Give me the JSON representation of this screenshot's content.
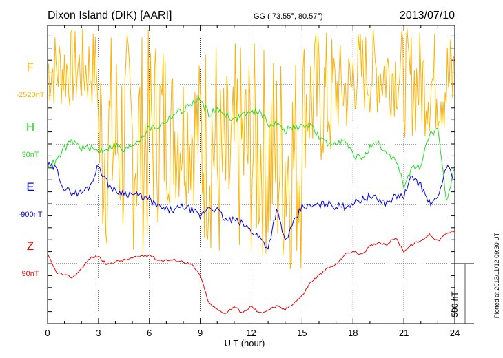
{
  "header": {
    "station": "Dixon Island (DIK)  [AARI]",
    "coords": "GG ( 73.55°,  80.57°)",
    "date": "2013/07/10"
  },
  "footer": {
    "plotted": "Plotted at 2013/11/12 09:30 UT"
  },
  "chart_data": {
    "type": "line",
    "title": "Dixon Island (DIK)  [AARI]",
    "xlabel": "U T (hour)",
    "xlim": [
      0,
      24
    ],
    "xticks": [
      "0",
      "3",
      "6",
      "9",
      "12",
      "15",
      "18",
      "21",
      "24"
    ],
    "scale_bar": "500 nT",
    "scale_bar_nT": 500,
    "grid": true,
    "colors": {
      "F": "#ffb300",
      "H": "#22dd22",
      "E": "#0000ee",
      "Z": "#ee0000"
    },
    "traces": [
      {
        "name": "F",
        "baseline": "-2520nT",
        "envelope_per_hour_nT": [
          [
            -213,
            477
          ],
          [
            -213,
            477
          ],
          [
            -213,
            477
          ],
          [
            -1420,
            477
          ],
          [
            -1420,
            477
          ],
          [
            -1420,
            477
          ],
          [
            -1190,
            477
          ],
          [
            -1017,
            247
          ],
          [
            -1017,
            247
          ],
          [
            -1420,
            477
          ],
          [
            -1592,
            132
          ],
          [
            -1477,
            362
          ],
          [
            -1477,
            362
          ],
          [
            -1592,
            362
          ],
          [
            -1592,
            362
          ],
          [
            -730,
            477
          ],
          [
            -730,
            477
          ],
          [
            -443,
            362
          ],
          [
            -270,
            477
          ],
          [
            -270,
            477
          ],
          [
            -270,
            477
          ],
          [
            -443,
            477
          ],
          [
            -443,
            477
          ],
          [
            -443,
            477
          ]
        ]
      },
      {
        "name": "H",
        "baseline": "30nT",
        "t_step_h": 0.5,
        "values_nT": [
          -172,
          -144,
          -29,
          29,
          -29,
          -29,
          -57,
          -29,
          0,
          -57,
          0,
          57,
          144,
          144,
          201,
          259,
          287,
          345,
          374,
          259,
          287,
          259,
          201,
          259,
          259,
          287,
          172,
          172,
          115,
          144,
          144,
          172,
          57,
          0,
          29,
          29,
          -86,
          -115,
          -29,
          0,
          -86,
          -115,
          -345,
          -201,
          -172,
          86,
          115,
          -460,
          -201
        ]
      },
      {
        "name": "E",
        "baseline": "-900nT",
        "t_step_h": 0.5,
        "values_nT": [
          328,
          299,
          126,
          98,
          98,
          155,
          328,
          184,
          109,
          98,
          86,
          69,
          40,
          -17,
          -46,
          -46,
          -17,
          -46,
          -103,
          -17,
          -46,
          -132,
          -132,
          -161,
          -218,
          -276,
          -362,
          -46,
          -305,
          -161,
          -17,
          -17,
          -6,
          11,
          -17,
          -17,
          11,
          40,
          69,
          40,
          11,
          69,
          69,
          241,
          155,
          11,
          40,
          328,
          213
        ]
      },
      {
        "name": "Z",
        "baseline": "90nT",
        "t_step_h": 0.5,
        "values_nT": [
          75,
          -69,
          -98,
          -115,
          -40,
          46,
          63,
          -11,
          17,
          29,
          46,
          63,
          75,
          29,
          29,
          29,
          17,
          -11,
          -98,
          -328,
          -385,
          -414,
          -356,
          -414,
          -356,
          -414,
          -385,
          -356,
          -385,
          -328,
          -270,
          -155,
          -98,
          -40,
          -11,
          75,
          103,
          75,
          144,
          178,
          161,
          218,
          103,
          161,
          190,
          247,
          190,
          247,
          276
        ]
      }
    ]
  }
}
